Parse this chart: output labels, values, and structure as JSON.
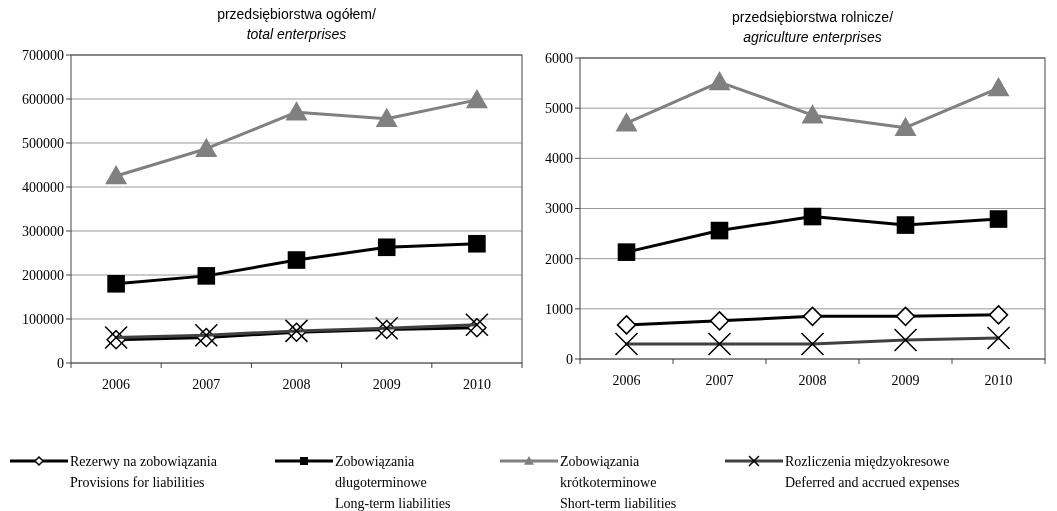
{
  "chart_data": [
    {
      "type": "line",
      "title": "przedsiębiorstwa ogółem/\ntotal enterprises",
      "categories": [
        "2006",
        "2007",
        "2008",
        "2009",
        "2010"
      ],
      "ylim": [
        0,
        700000
      ],
      "yticks": [
        0,
        100000,
        200000,
        300000,
        400000,
        500000,
        600000,
        700000
      ],
      "grid": "y",
      "legend": "bottom",
      "series": [
        {
          "name": "Rezerwy na zobowiązania\nProvisions for liabilities",
          "color": "#000000",
          "marker": "diamond",
          "values": [
            53000,
            58000,
            70000,
            76000,
            80000
          ]
        },
        {
          "name": "Zobowiązania\ndługoterminowe\nLong-term liabilities",
          "color": "#000000",
          "marker": "square",
          "values": [
            180000,
            198000,
            234000,
            263000,
            271000
          ]
        },
        {
          "name": "Zobowiązania\nkrótkoterminowe\nShort-term liabilities",
          "color": "#808080",
          "marker": "triangle",
          "values": [
            425000,
            487000,
            570000,
            555000,
            598000
          ]
        },
        {
          "name": "Rozliczenia międzyokresowe\nDeferred and accrued expenses",
          "color": "#404040",
          "marker": "cross",
          "values": [
            58000,
            63000,
            73000,
            79000,
            87000
          ]
        }
      ]
    },
    {
      "type": "line",
      "title": "przedsiębiorstwa rolnicze/\nagriculture enterprises",
      "categories": [
        "2006",
        "2007",
        "2008",
        "2009",
        "2010"
      ],
      "ylim": [
        0,
        6000
      ],
      "yticks": [
        0,
        1000,
        2000,
        3000,
        4000,
        5000,
        6000
      ],
      "grid": "y",
      "series": [
        {
          "color": "#000000",
          "marker": "diamond",
          "values": [
            680,
            760,
            850,
            850,
            880
          ]
        },
        {
          "color": "#000000",
          "marker": "square",
          "values": [
            2130,
            2560,
            2840,
            2670,
            2790
          ]
        },
        {
          "color": "#808080",
          "marker": "triangle",
          "values": [
            4700,
            5520,
            4860,
            4610,
            5400
          ]
        },
        {
          "color": "#404040",
          "marker": "cross",
          "values": [
            300,
            300,
            300,
            380,
            420
          ]
        }
      ]
    }
  ]
}
